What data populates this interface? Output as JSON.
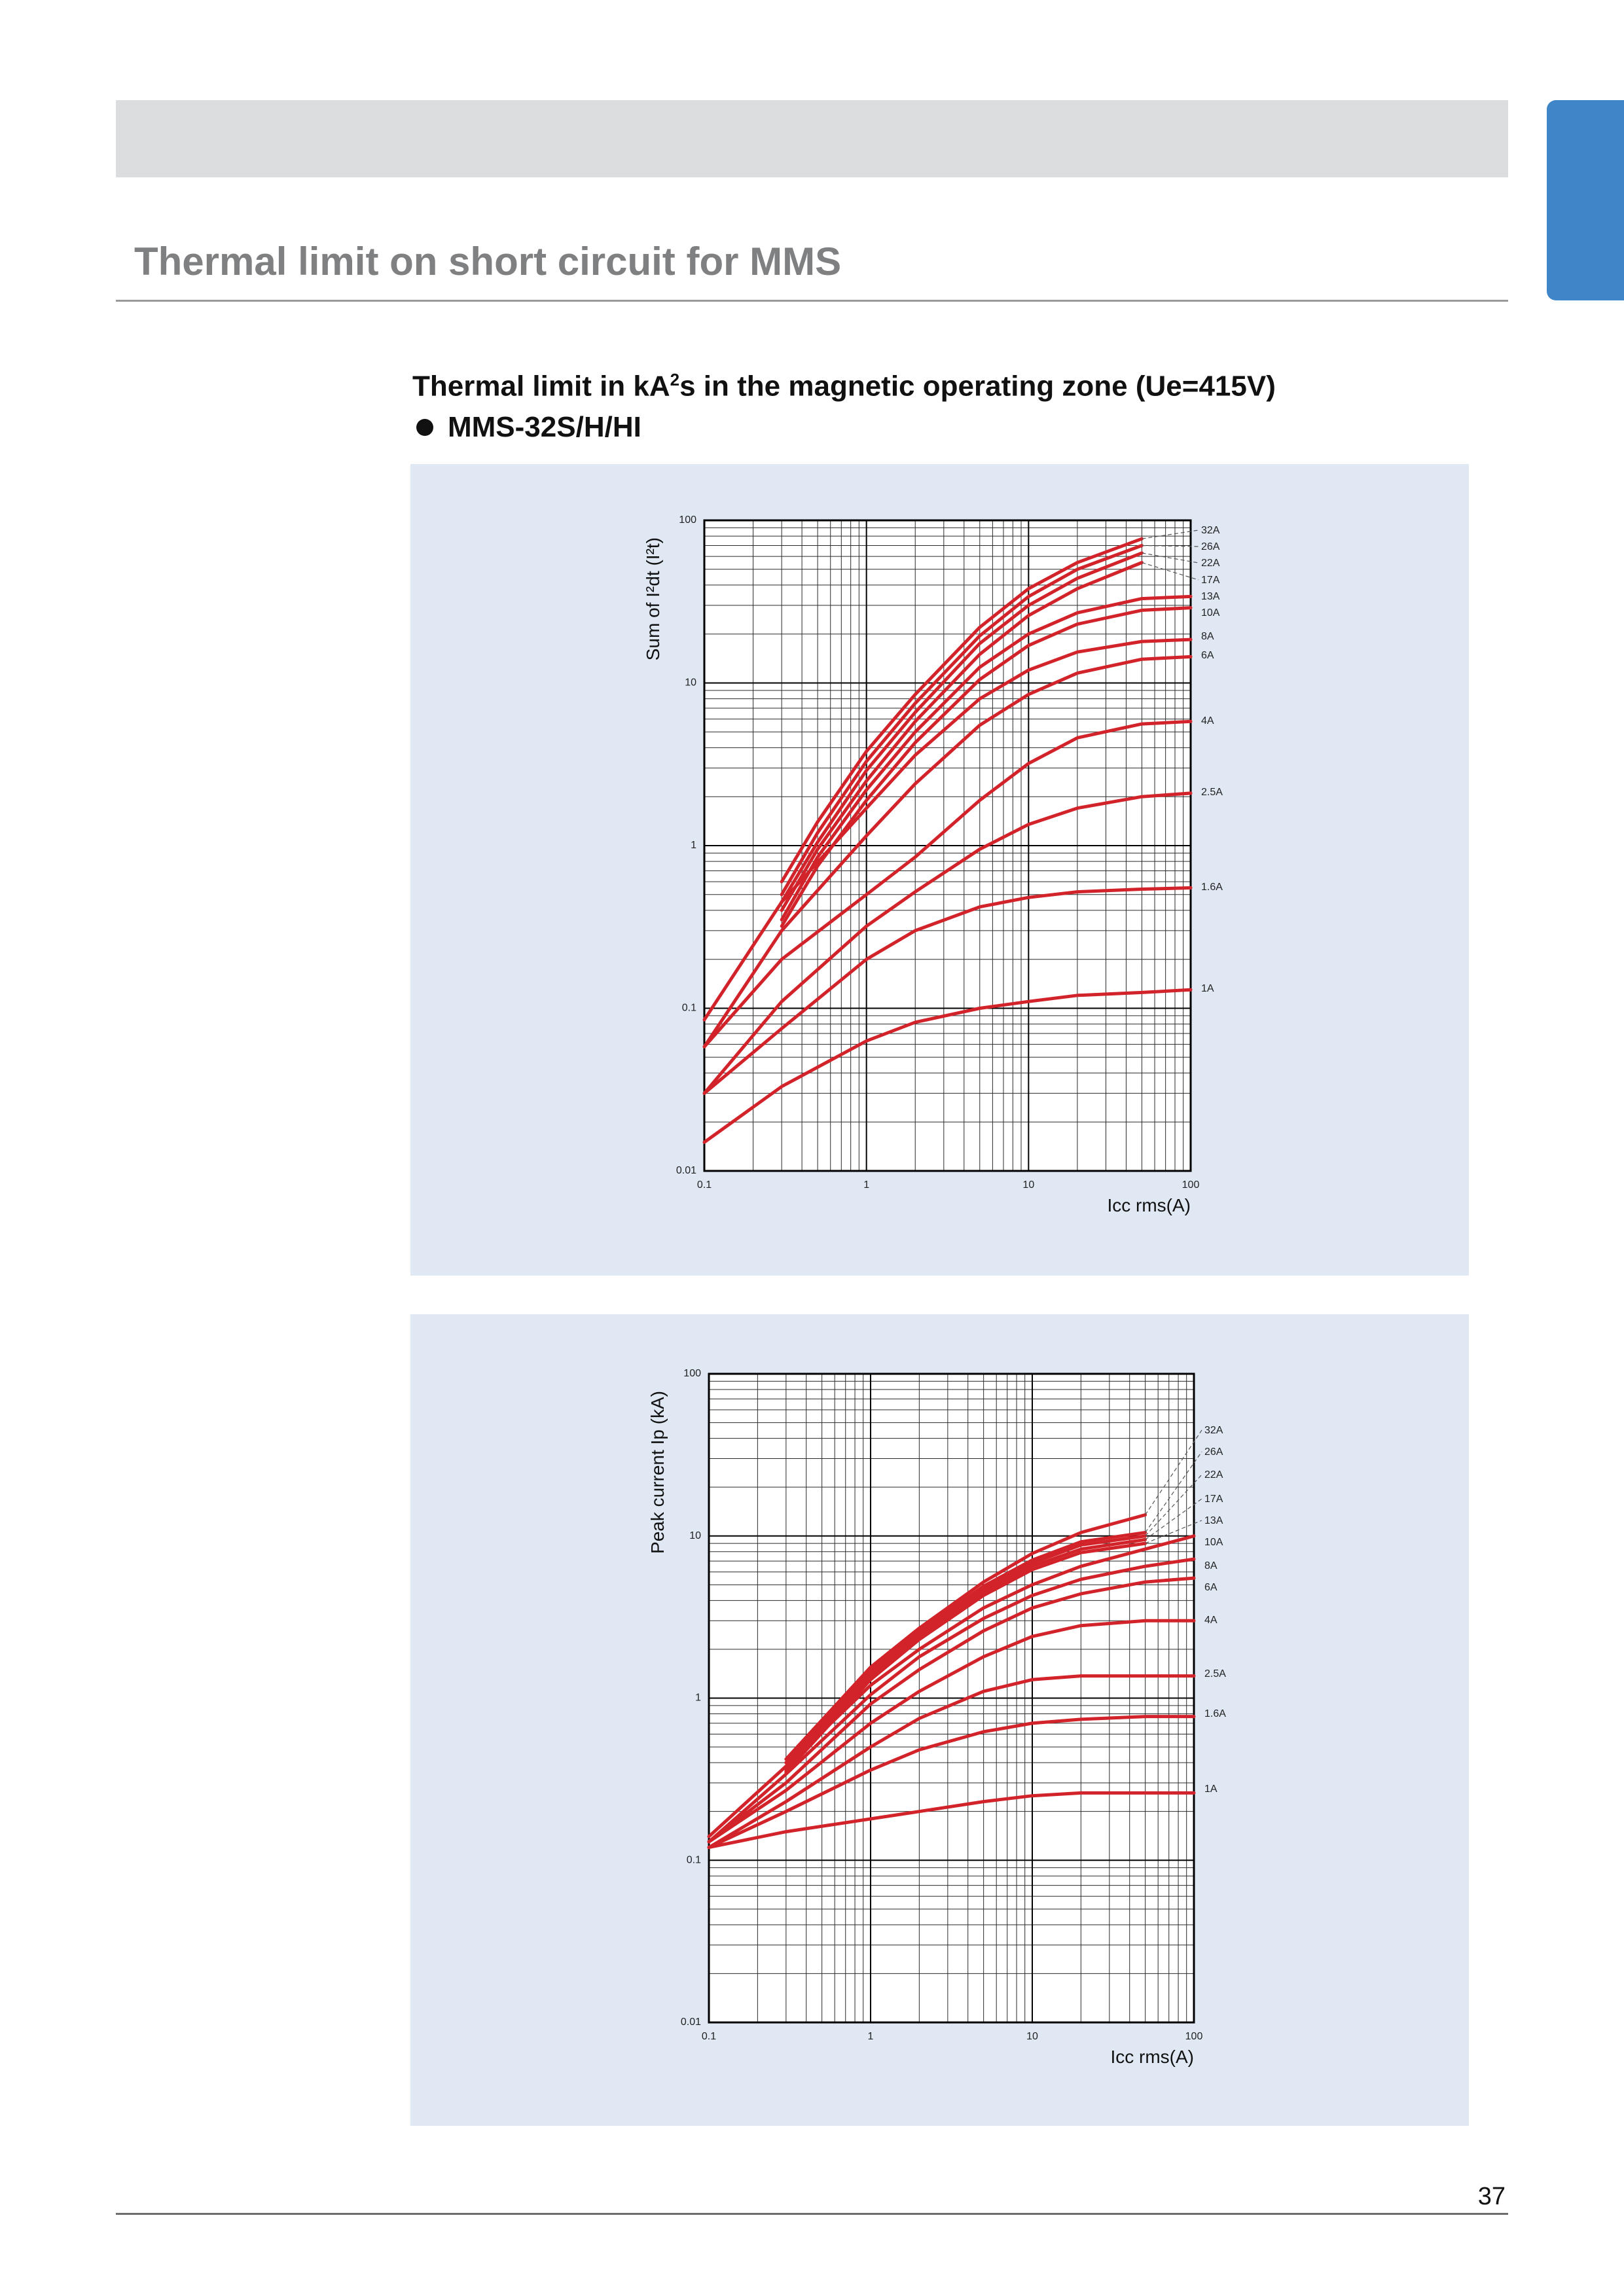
{
  "page": {
    "title": "Thermal limit on short circuit for MMS",
    "page_number": "37",
    "accent_color": "#3e86c8",
    "band_color": "#dcdddf",
    "panel_color": "#dfe8f3",
    "curve_color": "#d2232a"
  },
  "section": {
    "heading_prefix": "Thermal limit in kA",
    "heading_sup": "2",
    "heading_suffix": "s in the magnetic operating zone (Ue=415V)",
    "model": "MMS-32S/H/HI"
  },
  "chart_data": [
    {
      "type": "line",
      "xlabel": "Icc rms(A)",
      "ylabel": "Sum of I²dt (I²t)",
      "x_scale": "log",
      "y_scale": "log",
      "xlim": [
        0.1,
        100
      ],
      "ylim": [
        0.01,
        100
      ],
      "x_ticks": [
        "0.1",
        "1",
        "10",
        "100"
      ],
      "y_ticks": [
        "100",
        "10",
        "1",
        "0.1",
        "0.01"
      ],
      "grid": true,
      "series": [
        {
          "name": "32A",
          "x": [
            0.3,
            0.5,
            1,
            2,
            5,
            10,
            20,
            50
          ],
          "y": [
            0.6,
            1.4,
            3.8,
            8.5,
            22,
            38,
            55,
            77
          ]
        },
        {
          "name": "26A",
          "x": [
            0.3,
            0.5,
            1,
            2,
            5,
            10,
            20,
            50
          ],
          "y": [
            0.5,
            1.2,
            3.3,
            7.5,
            19.5,
            34,
            50,
            70
          ]
        },
        {
          "name": "22A",
          "x": [
            0.3,
            0.5,
            1,
            2,
            5,
            10,
            20,
            50
          ],
          "y": [
            0.45,
            1.05,
            2.9,
            6.6,
            17.5,
            30,
            44,
            63
          ]
        },
        {
          "name": "17A",
          "x": [
            0.3,
            0.5,
            1,
            2,
            5,
            10,
            20,
            50
          ],
          "y": [
            0.4,
            0.95,
            2.5,
            5.8,
            15,
            26,
            38,
            55
          ]
        },
        {
          "name": "13A",
          "x": [
            0.3,
            0.5,
            1,
            2,
            5,
            10,
            20,
            50,
            100
          ],
          "y": [
            0.35,
            0.85,
            2.2,
            5.0,
            12.5,
            20,
            27,
            33,
            34
          ]
        },
        {
          "name": "10A",
          "x": [
            0.3,
            0.5,
            1,
            2,
            5,
            10,
            20,
            50,
            100
          ],
          "y": [
            0.32,
            0.75,
            1.9,
            4.3,
            10.5,
            17,
            23,
            28,
            29
          ]
        },
        {
          "name": "8A",
          "x": [
            0.1,
            0.3,
            1,
            2,
            5,
            10,
            20,
            50,
            100
          ],
          "y": [
            0.085,
            0.45,
            1.7,
            3.6,
            8.0,
            12,
            15.5,
            18,
            18.5
          ]
        },
        {
          "name": "6A",
          "x": [
            0.1,
            0.3,
            1,
            2,
            5,
            10,
            20,
            50,
            100
          ],
          "y": [
            0.058,
            0.3,
            1.15,
            2.4,
            5.5,
            8.5,
            11.5,
            14,
            14.5
          ]
        },
        {
          "name": "4A",
          "x": [
            0.1,
            0.3,
            1,
            2,
            5,
            10,
            20,
            50,
            100
          ],
          "y": [
            0.058,
            0.2,
            0.5,
            0.85,
            1.9,
            3.2,
            4.6,
            5.6,
            5.8
          ]
        },
        {
          "name": "2.5A",
          "x": [
            0.1,
            0.3,
            1,
            2,
            5,
            10,
            20,
            50,
            100
          ],
          "y": [
            0.03,
            0.11,
            0.32,
            0.52,
            0.95,
            1.35,
            1.7,
            2.0,
            2.1
          ]
        },
        {
          "name": "1.6A",
          "x": [
            0.1,
            0.3,
            1,
            2,
            5,
            10,
            20,
            50,
            100
          ],
          "y": [
            0.03,
            0.075,
            0.2,
            0.3,
            0.42,
            0.48,
            0.52,
            0.54,
            0.55
          ]
        },
        {
          "name": "1A",
          "x": [
            0.1,
            0.3,
            1,
            2,
            5,
            10,
            20,
            50,
            100
          ],
          "y": [
            0.015,
            0.033,
            0.063,
            0.082,
            0.1,
            0.11,
            0.12,
            0.125,
            0.13
          ]
        }
      ]
    },
    {
      "type": "line",
      "xlabel": "Icc rms(A)",
      "ylabel": "Peak current Ip (kA)",
      "x_scale": "log",
      "y_scale": "log",
      "xlim": [
        0.1,
        100
      ],
      "ylim": [
        0.01,
        100
      ],
      "x_ticks": [
        "0.1",
        "1",
        "10",
        "100"
      ],
      "y_ticks": [
        "100",
        "10",
        "1",
        "0.1",
        "0.01"
      ],
      "grid": true,
      "series": [
        {
          "name": "32A",
          "x": [
            0.3,
            1,
            2,
            5,
            10,
            20,
            50
          ],
          "y": [
            0.42,
            1.55,
            2.7,
            5.2,
            7.8,
            10.5,
            13.5
          ]
        },
        {
          "name": "26A",
          "x": [
            0.3,
            1,
            2,
            5,
            10,
            20,
            50
          ],
          "y": [
            0.4,
            1.5,
            2.6,
            4.9,
            7.1,
            9.2,
            10.5
          ]
        },
        {
          "name": "22A",
          "x": [
            0.3,
            1,
            2,
            5,
            10,
            20,
            50
          ],
          "y": [
            0.38,
            1.42,
            2.5,
            4.7,
            6.8,
            8.8,
            10.0
          ]
        },
        {
          "name": "17A",
          "x": [
            0.3,
            1,
            2,
            5,
            10,
            20,
            50
          ],
          "y": [
            0.36,
            1.35,
            2.4,
            4.5,
            6.5,
            8.3,
            9.5
          ]
        },
        {
          "name": "13A",
          "x": [
            0.3,
            1,
            2,
            5,
            10,
            20,
            50
          ],
          "y": [
            0.35,
            1.3,
            2.3,
            4.3,
            6.2,
            7.9,
            9.0
          ]
        },
        {
          "name": "10A",
          "x": [
            0.1,
            0.3,
            1,
            2,
            5,
            10,
            20,
            50,
            100
          ],
          "y": [
            0.14,
            0.38,
            1.2,
            2.0,
            3.6,
            5.0,
            6.5,
            8.3,
            10.0
          ]
        },
        {
          "name": "8A",
          "x": [
            0.1,
            0.3,
            1,
            2,
            5,
            10,
            20,
            50,
            100
          ],
          "y": [
            0.13,
            0.34,
            1.05,
            1.8,
            3.1,
            4.3,
            5.4,
            6.5,
            7.2
          ]
        },
        {
          "name": "6A",
          "x": [
            0.1,
            0.3,
            1,
            2,
            5,
            10,
            20,
            50,
            100
          ],
          "y": [
            0.13,
            0.3,
            0.92,
            1.5,
            2.6,
            3.6,
            4.4,
            5.2,
            5.5
          ]
        },
        {
          "name": "4A",
          "x": [
            0.1,
            0.3,
            1,
            2,
            5,
            10,
            20,
            50,
            100
          ],
          "y": [
            0.13,
            0.27,
            0.7,
            1.1,
            1.8,
            2.4,
            2.8,
            3.0,
            3.0
          ]
        },
        {
          "name": "2.5A",
          "x": [
            0.1,
            0.3,
            1,
            2,
            5,
            10,
            20,
            50,
            100
          ],
          "y": [
            0.12,
            0.23,
            0.5,
            0.75,
            1.1,
            1.3,
            1.37,
            1.37,
            1.37
          ]
        },
        {
          "name": "1.6A",
          "x": [
            0.1,
            0.3,
            1,
            2,
            5,
            10,
            20,
            50,
            100
          ],
          "y": [
            0.12,
            0.2,
            0.36,
            0.48,
            0.62,
            0.7,
            0.74,
            0.77,
            0.77
          ]
        },
        {
          "name": "1A",
          "x": [
            0.1,
            0.3,
            1,
            2,
            5,
            10,
            20,
            50,
            100
          ],
          "y": [
            0.12,
            0.15,
            0.18,
            0.2,
            0.23,
            0.25,
            0.26,
            0.26,
            0.26
          ]
        }
      ]
    }
  ]
}
